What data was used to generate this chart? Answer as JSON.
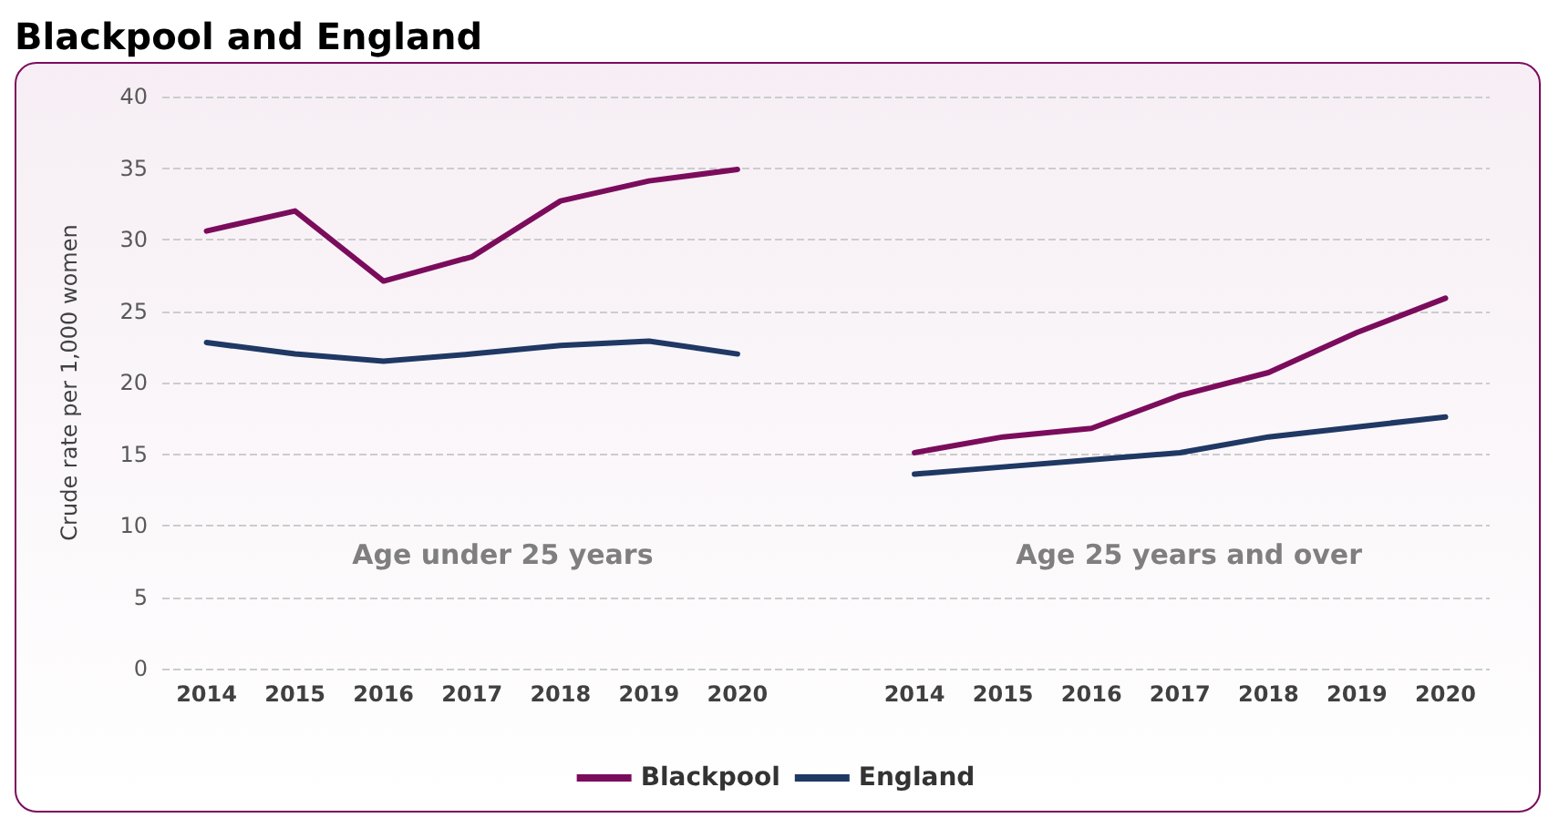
{
  "chart_data": {
    "type": "line",
    "title": "Blackpool and England",
    "ylabel": "Crude rate per 1,000 women",
    "categories": [
      "2014",
      "2015",
      "2016",
      "2017",
      "2018",
      "2019",
      "2020",
      null,
      "2014",
      "2015",
      "2016",
      "2017",
      "2018",
      "2019",
      "2020"
    ],
    "series": [
      {
        "name": "Blackpool",
        "color": "#7b0c5c",
        "values": [
          30.6,
          32.0,
          27.1,
          28.8,
          32.7,
          34.1,
          34.9,
          null,
          15.1,
          16.2,
          16.8,
          19.1,
          20.7,
          23.5,
          25.9
        ]
      },
      {
        "name": "England",
        "color": "#1f3864",
        "values": [
          22.8,
          22.0,
          21.5,
          22.0,
          22.6,
          22.9,
          22.0,
          null,
          13.6,
          14.1,
          14.6,
          15.1,
          16.2,
          16.9,
          17.6
        ]
      }
    ],
    "ylim": [
      0,
      40
    ],
    "yticks": [
      0,
      5,
      10,
      15,
      20,
      25,
      30,
      35,
      40
    ],
    "grid": "y",
    "legend": "bottom",
    "marker": "none",
    "line_style": "solid",
    "annotations": [
      "Age under 25 years",
      "Age 25 years and over"
    ]
  }
}
